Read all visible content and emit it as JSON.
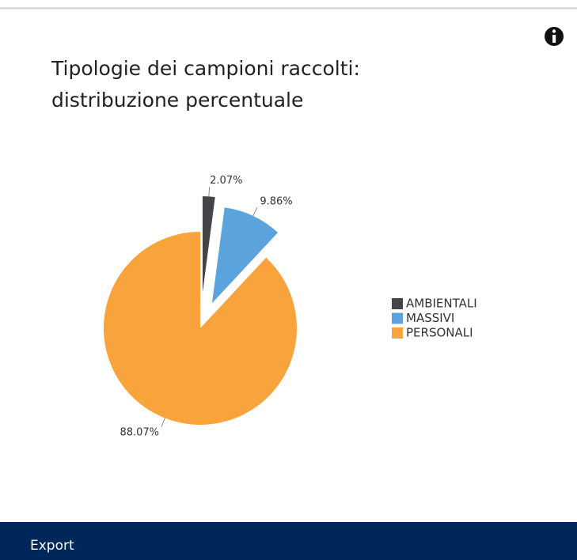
{
  "chart_data": {
    "type": "pie",
    "title": "Tipologie dei campioni raccolti: distribuzione percentuale",
    "title_lines": [
      "Tipologie dei campioni raccolti:",
      "distribuzione percentuale"
    ],
    "categories": [
      "AMBIENTALI",
      "MASSIVI",
      "PERSONALI"
    ],
    "values": [
      2.07,
      9.86,
      88.07
    ],
    "value_labels": [
      "2.07%",
      "9.86%",
      "88.07%"
    ],
    "colors": [
      "#434348",
      "#5ba3dc",
      "#f8a33c"
    ],
    "legend": "right"
  },
  "footer": {
    "button": "Export"
  }
}
